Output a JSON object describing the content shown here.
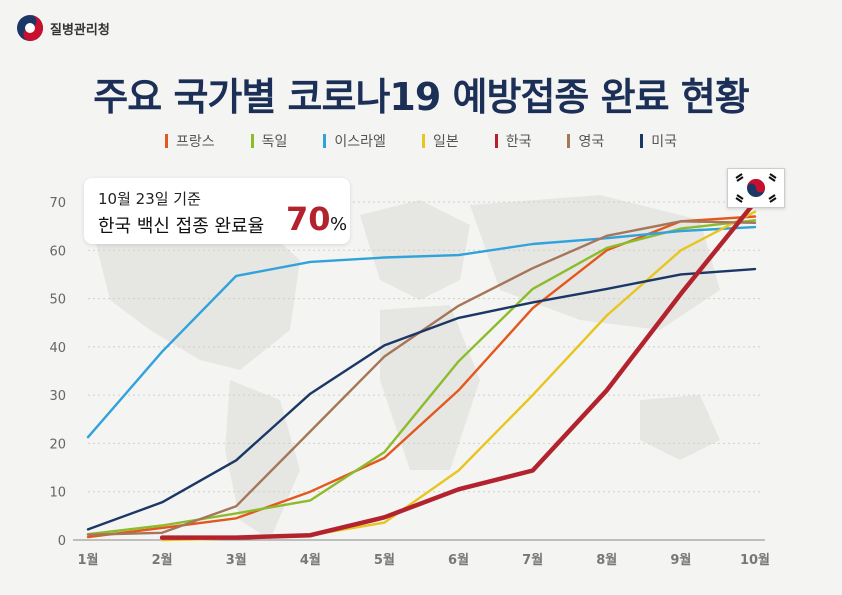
{
  "header": {
    "brand_name": "질병관리청",
    "title": "주요 국가별 코로나19 예방접종 완료 현황"
  },
  "callout": {
    "line1": "10월 23일 기준",
    "line2": "한국 백신 접종 완료율",
    "big_value": "70",
    "unit": "%"
  },
  "colors": {
    "title": "#1c2f57",
    "accent": "#b3232e"
  },
  "chart_data": {
    "type": "line",
    "title": "주요 국가별 코로나19 예방접종 완료 현황",
    "xlabel": "",
    "ylabel": "",
    "categories": [
      "1월",
      "2월",
      "3월",
      "4월",
      "5월",
      "6월",
      "7월",
      "8월",
      "9월",
      "10월"
    ],
    "ylim": [
      0,
      70
    ],
    "yticks": [
      0,
      10,
      20,
      30,
      40,
      50,
      60,
      70
    ],
    "grid": true,
    "legend_position": "top",
    "series": [
      {
        "name": "프랑스",
        "color": "#e2581f",
        "values": [
          0.6,
          2.5,
          4.5,
          10,
          17,
          31,
          48,
          60,
          66,
          67
        ]
      },
      {
        "name": "독일",
        "color": "#8cbc2c",
        "values": [
          1.2,
          3,
          5.5,
          8.2,
          18.2,
          37,
          52,
          60.5,
          64.5,
          66.2
        ]
      },
      {
        "name": "이스라엘",
        "color": "#31a2db",
        "values": [
          21.3,
          39,
          54.7,
          57.6,
          58.5,
          59,
          61.3,
          62.5,
          64,
          64.8
        ]
      },
      {
        "name": "일본",
        "color": "#e8c51f",
        "values": [
          null,
          0,
          0.3,
          1,
          3.6,
          14.4,
          30,
          46.5,
          60,
          68
        ]
      },
      {
        "name": "한국",
        "color": "#b3232e",
        "values": [
          null,
          0.5,
          0.5,
          1,
          4.7,
          10.5,
          14.4,
          31,
          51,
          70
        ]
      },
      {
        "name": "영국",
        "color": "#a5765a",
        "values": [
          1.1,
          1.5,
          7,
          22.5,
          38,
          48.5,
          56.3,
          63,
          66,
          65.7
        ]
      },
      {
        "name": "미국",
        "color": "#1b3766",
        "values": [
          2.2,
          7.8,
          16.5,
          30.3,
          40.3,
          46,
          49.2,
          52,
          55,
          56.1
        ]
      }
    ]
  }
}
